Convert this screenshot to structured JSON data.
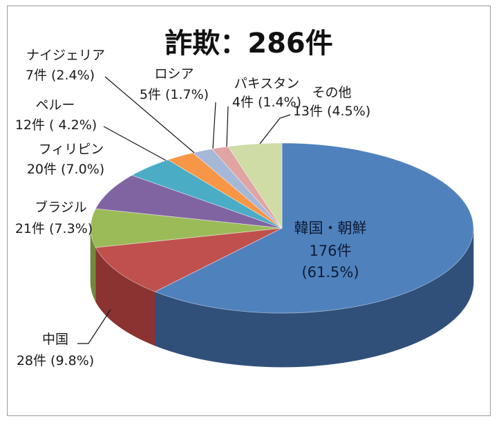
{
  "chart_data": {
    "type": "pie",
    "style": "3d",
    "title": "詐欺：286件",
    "total": 286,
    "unit": "件",
    "slices": [
      {
        "name": "韓国・朝鮮",
        "value": 176,
        "percent": 61.5,
        "label_line1": "韓国・朝鮮",
        "label_line2": "176件",
        "label_line3": "(61.5%)",
        "color": "#4f81bd",
        "side": "#30507a"
      },
      {
        "name": "中国",
        "value": 28,
        "percent": 9.8,
        "label_line1": "中国",
        "label_line2": "28件 (9.8%)",
        "color": "#c0504d",
        "side": "#8a3331"
      },
      {
        "name": "ブラジル",
        "value": 21,
        "percent": 7.3,
        "label_line1": "ブラジル",
        "label_line2": "21件 (7.3%)",
        "color": "#9bbb59",
        "side": "#6f8a3a"
      },
      {
        "name": "フィリピン",
        "value": 20,
        "percent": 7.0,
        "label_line1": "フィリピン",
        "label_line2": "20件 (7.0%)",
        "color": "#8064a2",
        "side": "#5a4575"
      },
      {
        "name": "ペルー",
        "value": 12,
        "percent": 4.2,
        "label_line1": "ペルー",
        "label_line2": "12件 ( 4.2%)",
        "color": "#4bacc6",
        "side": "#2f7d92"
      },
      {
        "name": "ナイジェリア",
        "value": 7,
        "percent": 2.4,
        "label_line1": "ナイジェリア",
        "label_line2": "7件 (2.4%)",
        "color": "#f79646",
        "side": "#b86a2c"
      },
      {
        "name": "ロシア",
        "value": 5,
        "percent": 1.7,
        "label_line1": "ロシア",
        "label_line2": "5件 (1.7%)",
        "color": "#a6b8d8",
        "side": "#7a8aa8"
      },
      {
        "name": "パキスタン",
        "value": 4,
        "percent": 1.4,
        "label_line1": "パキスタン",
        "label_line2": "4件 (1.4%)",
        "color": "#e0a4a2",
        "side": "#a87472"
      },
      {
        "name": "その他",
        "value": 13,
        "percent": 4.5,
        "label_line1": "その他",
        "label_line2": "13件 (4.5%)",
        "color": "#cfdca6",
        "side": "#99a676"
      }
    ]
  }
}
